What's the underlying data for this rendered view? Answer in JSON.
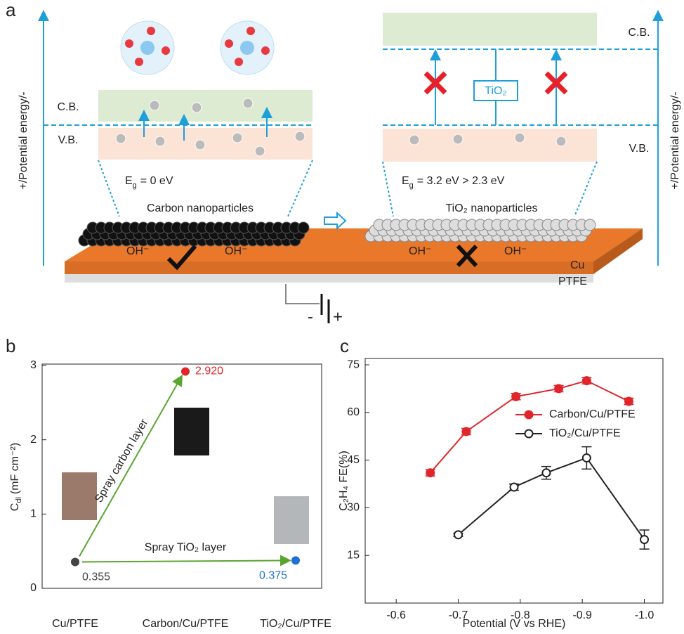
{
  "panel_a": {
    "label": "a",
    "left_axis": "+/Potential energy/-",
    "right_axis": "+/Potential energy/-",
    "left": {
      "cb": "C.B.",
      "vb": "V.B.",
      "eg": {
        "symbol": "E",
        "subscript": "g",
        "value": "= 0 eV"
      },
      "material": "Carbon nanoparticles",
      "ion": "OH⁻"
    },
    "right": {
      "cb": "C.B.",
      "vb": "V.B.",
      "oxide": "TiO₂",
      "eg": {
        "symbol": "E",
        "subscript": "g",
        "value": "= 3.2 eV > 2.3 eV"
      },
      "material": "TiO₂ nanoparticles",
      "ion": "OH⁻"
    },
    "substrate": "Cu",
    "support": "PTFE",
    "cathode": "-",
    "anode": "+"
  },
  "chart_data": [
    {
      "type": "dot",
      "label": "b",
      "categories": [
        "Cu/PTFE",
        "Carbon/Cu/PTFE",
        "TiO₂/Cu/PTFE"
      ],
      "values": [
        0.355,
        2.92,
        0.375
      ],
      "value_labels": [
        "0.355",
        "2.920",
        "0.375"
      ],
      "colors": [
        "#444444",
        "#e0262b",
        "#1f6fd6"
      ],
      "ylabel": {
        "symbol": "C",
        "subscript": "dl",
        "unit": "(mF cm⁻²)"
      },
      "ylim": [
        0,
        3
      ],
      "yticks": [
        0,
        1,
        2,
        3
      ],
      "annotations": [
        "Spray carbon layer",
        "Spray TiO₂ layer"
      ]
    },
    {
      "type": "line",
      "label": "c",
      "xlabel": "Potential (V vs RHE)",
      "ylabel": "C₂H₄ FE(%)",
      "xlim": [
        -0.55,
        -1.03
      ],
      "xticks": [
        -0.6,
        -0.7,
        -0.8,
        -0.9,
        {
          "value": -1,
          "label": "-1.0"
        }
      ],
      "ylim": [
        0,
        77
      ],
      "yticks": [
        15,
        30,
        45,
        60,
        75
      ],
      "legend": "upper right",
      "series": [
        {
          "name": "Carbon/Cu/PTFE",
          "color": "#e0262b",
          "marker": "filled",
          "x": [
            -0.655,
            -0.713,
            -0.793,
            -0.862,
            -0.907,
            -0.975
          ],
          "values": [
            41,
            54,
            65,
            67.5,
            70,
            63.5
          ],
          "errors": [
            1,
            1,
            1,
            1,
            1,
            1
          ]
        },
        {
          "name": "TiO₂/Cu/PTFE",
          "color": "#222222",
          "marker": "open",
          "x": [
            -0.7,
            -0.79,
            -0.842,
            -0.907,
            -1
          ],
          "values": [
            21.5,
            36.5,
            41,
            45.7,
            20
          ],
          "errors": [
            0.5,
            1,
            2,
            3.5,
            3
          ]
        }
      ]
    }
  ]
}
